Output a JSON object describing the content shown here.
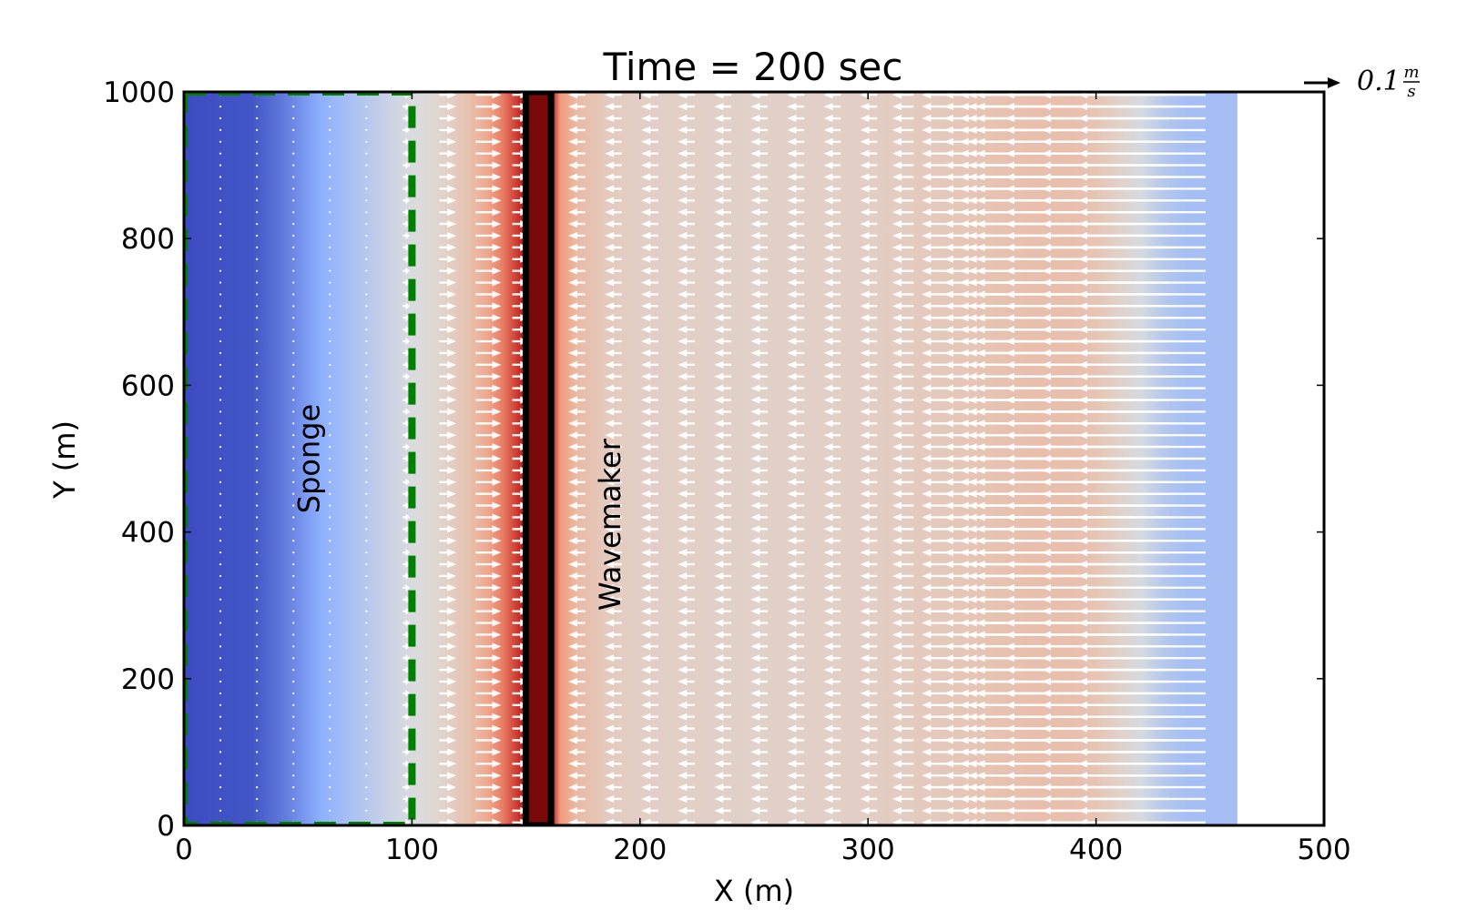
{
  "chart_data": {
    "type": "heatmap",
    "title": "Time = 200 sec",
    "xlabel": "X (m)",
    "ylabel": "Y (m)",
    "xlim": [
      0,
      500
    ],
    "ylim": [
      0,
      1000
    ],
    "xticks": [
      0,
      100,
      200,
      300,
      400,
      500
    ],
    "yticks": [
      0,
      200,
      400,
      600,
      800,
      1000
    ],
    "grid": false,
    "field_extent_x": [
      0,
      462
    ],
    "colormap": "coolwarm",
    "field_profile": {
      "x": [
        0,
        30,
        45,
        60,
        75,
        90,
        100,
        110,
        125,
        133,
        140,
        146,
        150,
        153,
        157,
        161,
        165,
        172,
        185,
        200,
        250,
        300,
        330,
        350,
        370,
        390,
        400,
        410,
        420,
        425,
        430,
        440,
        462
      ],
      "value": [
        -1.0,
        -0.95,
        -0.75,
        -0.5,
        -0.3,
        -0.12,
        -0.02,
        0.05,
        0.22,
        0.4,
        0.6,
        0.8,
        0.95,
        1.05,
        1.05,
        0.95,
        0.5,
        0.28,
        0.15,
        0.12,
        0.1,
        0.12,
        0.16,
        0.2,
        0.24,
        0.24,
        0.2,
        0.1,
        -0.05,
        -0.15,
        -0.25,
        -0.35,
        -0.35
      ]
    },
    "quiver": {
      "reference_label": "0.1",
      "reference_units_num": "m",
      "reference_units_den": "s",
      "x": [
        0,
        16,
        32,
        48,
        64,
        80,
        96,
        112,
        128,
        144,
        160,
        176,
        192,
        208,
        224,
        240,
        256,
        272,
        288,
        304,
        320,
        336,
        352,
        368,
        384,
        400,
        416,
        432,
        448
      ],
      "u": [
        0,
        0,
        0,
        0,
        0,
        0,
        0.005,
        0.012,
        0.018,
        0.012,
        0,
        -0.012,
        -0.012,
        -0.012,
        -0.012,
        -0.012,
        -0.012,
        -0.012,
        -0.012,
        -0.012,
        -0.015,
        -0.02,
        -0.03,
        -0.045,
        -0.065,
        -0.085,
        -0.09,
        -0.09,
        -0.09
      ],
      "y_spacing": 16
    },
    "annotations": [
      {
        "text": "Sponge",
        "x": 55,
        "y": 500,
        "color": "#008000",
        "rotation": 90
      },
      {
        "text": "Wavemaker",
        "x": 187,
        "y": 670,
        "color": "#000000",
        "rotation": 90
      }
    ],
    "regions": [
      {
        "name": "sponge",
        "x": [
          0,
          100
        ],
        "y": [
          0,
          1000
        ],
        "color": "#008000",
        "style": "dashed"
      },
      {
        "name": "wavemaker",
        "x": [
          150,
          161
        ],
        "y": [
          0,
          1000
        ],
        "color": "#000000",
        "style": "solid"
      }
    ]
  }
}
